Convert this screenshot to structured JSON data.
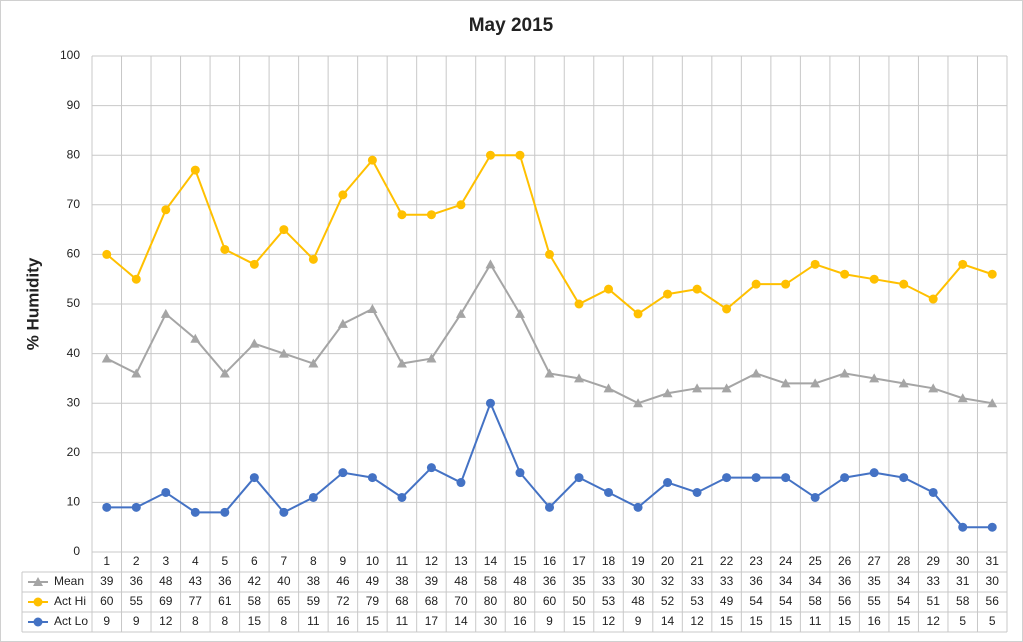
{
  "chart_data": {
    "type": "line",
    "title": "May 2015",
    "y_label": "% Humidity",
    "categories": [
      "1",
      "2",
      "3",
      "4",
      "5",
      "6",
      "7",
      "8",
      "9",
      "10",
      "11",
      "12",
      "13",
      "14",
      "15",
      "16",
      "17",
      "18",
      "19",
      "20",
      "21",
      "22",
      "23",
      "24",
      "25",
      "26",
      "27",
      "28",
      "29",
      "30",
      "31"
    ],
    "series": [
      {
        "name": "Mean",
        "color": "#a5a5a5",
        "marker": "triangle",
        "values": [
          39,
          36,
          48,
          43,
          36,
          42,
          40,
          38,
          46,
          49,
          38,
          39,
          48,
          58,
          48,
          36,
          35,
          33,
          30,
          32,
          33,
          33,
          36,
          34,
          34,
          36,
          35,
          34,
          33,
          31,
          30
        ]
      },
      {
        "name": "Act Hi",
        "color": "#ffc000",
        "marker": "circle",
        "values": [
          60,
          55,
          69,
          77,
          61,
          58,
          65,
          59,
          72,
          79,
          68,
          68,
          70,
          80,
          80,
          60,
          50,
          53,
          48,
          52,
          53,
          49,
          54,
          54,
          58,
          56,
          55,
          54,
          51,
          58,
          56
        ]
      },
      {
        "name": "Act Lo",
        "color": "#4472c4",
        "marker": "circle",
        "values": [
          9,
          9,
          12,
          8,
          8,
          15,
          8,
          11,
          16,
          15,
          11,
          17,
          14,
          30,
          16,
          9,
          15,
          12,
          9,
          14,
          12,
          15,
          15,
          15,
          11,
          15,
          16,
          15,
          12,
          5,
          5
        ]
      }
    ],
    "ylim": [
      0,
      100
    ],
    "yticks": [
      0,
      10,
      20,
      30,
      40,
      50,
      60,
      70,
      80,
      90,
      100
    ],
    "grid": true,
    "data_table": true
  }
}
